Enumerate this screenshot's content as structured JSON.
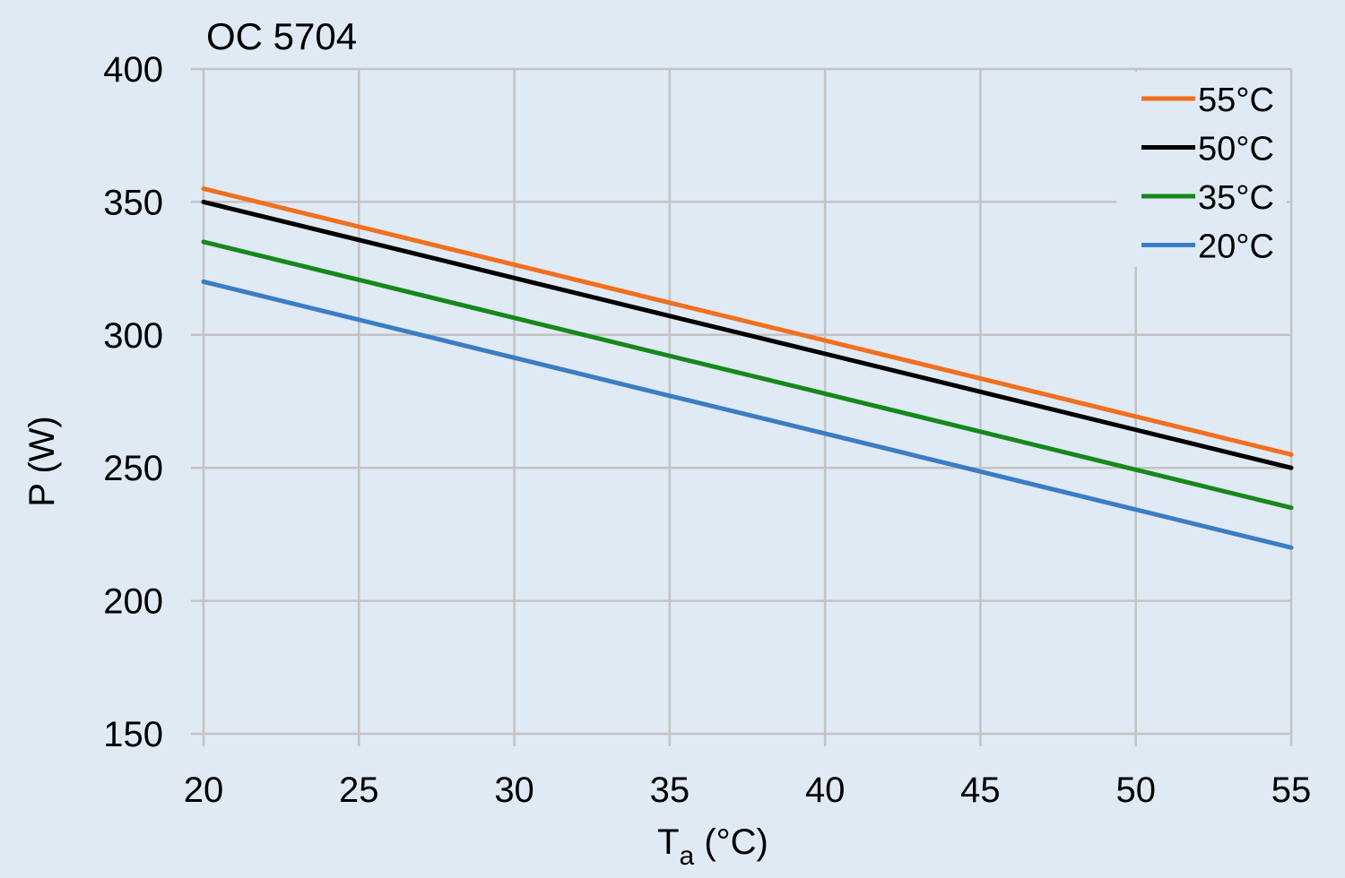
{
  "chart_data": {
    "type": "line",
    "title": "OC 5704",
    "xlabel_main": "T",
    "xlabel_sub": "a",
    "xlabel_unit": " (°C)",
    "ylabel": "P (W)",
    "x": [
      20,
      25,
      30,
      35,
      40,
      45,
      50,
      55
    ],
    "xlim": [
      20,
      55
    ],
    "ylim": [
      150,
      400
    ],
    "xticks": [
      "20",
      "25",
      "30",
      "35",
      "40",
      "45",
      "50",
      "55"
    ],
    "yticks": [
      "150",
      "200",
      "250",
      "300",
      "350",
      "400"
    ],
    "grid": true,
    "legend_position": "top-right",
    "series": [
      {
        "name": "55°C",
        "color": "#f26f1e",
        "values": [
          355,
          340.7,
          326.4,
          312.1,
          297.9,
          283.6,
          269.3,
          255
        ]
      },
      {
        "name": "50°C",
        "color": "#000000",
        "values": [
          350,
          335.7,
          321.4,
          307.1,
          292.9,
          278.6,
          264.3,
          250
        ]
      },
      {
        "name": "35°C",
        "color": "#16881a",
        "values": [
          335,
          320.7,
          306.4,
          292.1,
          277.9,
          263.6,
          249.3,
          235
        ]
      },
      {
        "name": "20°C",
        "color": "#3a7dc4",
        "values": [
          320,
          305.7,
          291.4,
          277.1,
          262.9,
          248.6,
          234.3,
          220
        ]
      }
    ],
    "colors": {
      "background": "#dfeaf5",
      "grid": "#c3c3c3"
    }
  }
}
